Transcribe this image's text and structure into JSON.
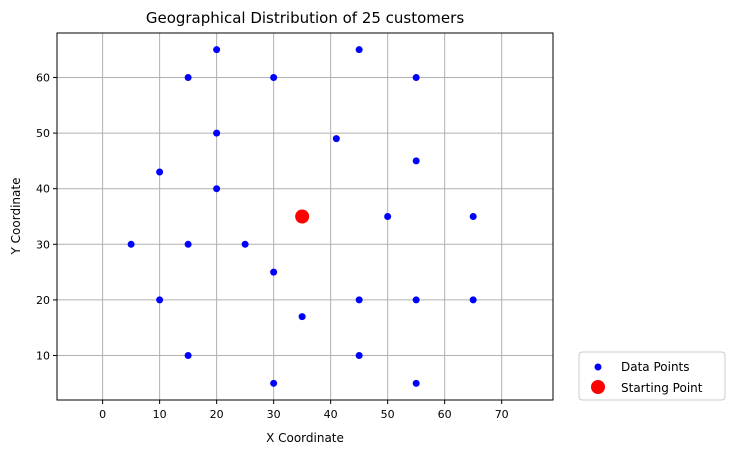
{
  "chart_data": {
    "type": "scatter",
    "title": "Geographical Distribution of 25 customers",
    "xlabel": "X Coordinate",
    "ylabel": "Y Coordinate",
    "xlim": [
      -8,
      79
    ],
    "ylim": [
      2,
      68
    ],
    "xticks": [
      0,
      10,
      20,
      30,
      40,
      50,
      60,
      70
    ],
    "yticks": [
      10,
      20,
      30,
      40,
      50,
      60
    ],
    "grid": true,
    "legend_position": "outside-bottom-right",
    "series": [
      {
        "name": "Data Points",
        "color": "#0000ff",
        "points": [
          [
            20,
            65
          ],
          [
            45,
            65
          ],
          [
            15,
            60
          ],
          [
            30,
            60
          ],
          [
            55,
            60
          ],
          [
            20,
            50
          ],
          [
            41,
            49
          ],
          [
            55,
            45
          ],
          [
            10,
            43
          ],
          [
            20,
            40
          ],
          [
            50,
            35
          ],
          [
            65,
            35
          ],
          [
            5,
            30
          ],
          [
            15,
            30
          ],
          [
            25,
            30
          ],
          [
            30,
            25
          ],
          [
            10,
            20
          ],
          [
            45,
            20
          ],
          [
            55,
            20
          ],
          [
            65,
            20
          ],
          [
            35,
            17
          ],
          [
            15,
            10
          ],
          [
            45,
            10
          ],
          [
            30,
            5
          ],
          [
            55,
            5
          ]
        ]
      },
      {
        "name": "Starting Point",
        "color": "#ff0000",
        "points": [
          [
            35,
            35
          ]
        ]
      }
    ]
  }
}
